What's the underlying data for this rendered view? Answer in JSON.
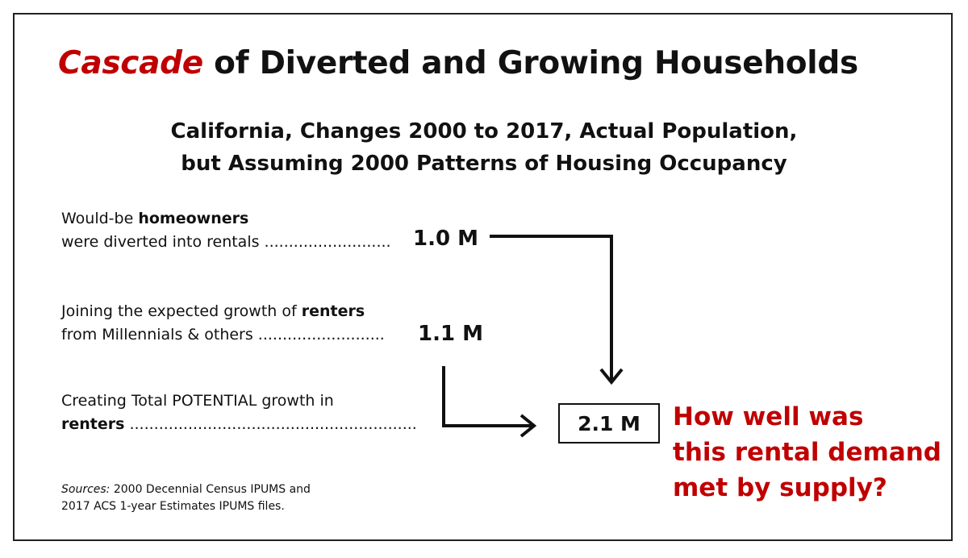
{
  "title": {
    "accent": "Cascade",
    "rest": " of Diverted and Growing Households"
  },
  "subtitle": {
    "line1": "California, Changes 2000 to 2017, Actual Population,",
    "line2": "but Assuming 2000 Patterns of Housing Occupancy"
  },
  "rows": [
    {
      "line1_prefix": "Would-be ",
      "line1_bold": "homeowners",
      "line2": "were diverted into rentals ..........................",
      "value": "1.0 M"
    },
    {
      "line1_prefix": "Joining the expected growth of ",
      "line1_bold": "renters",
      "line2": "from Millennials & others ..........................",
      "value": "1.1 M"
    },
    {
      "line1": "Creating Total POTENTIAL growth in",
      "line2_bold": "renters",
      "line2_dots": "  ...........................................................",
      "value": "2.1 M"
    }
  ],
  "question": {
    "line1": "How well was",
    "line2": "this rental demand",
    "line3": "met by supply?"
  },
  "sources": {
    "label": "Sources:",
    "line1_rest": " 2000 Decennial Census IPUMS and",
    "line2": "2017 ACS 1-year Estimates IPUMS files."
  },
  "colors": {
    "accent_red": "#c00000",
    "text": "#111111",
    "frame": "#222222"
  }
}
